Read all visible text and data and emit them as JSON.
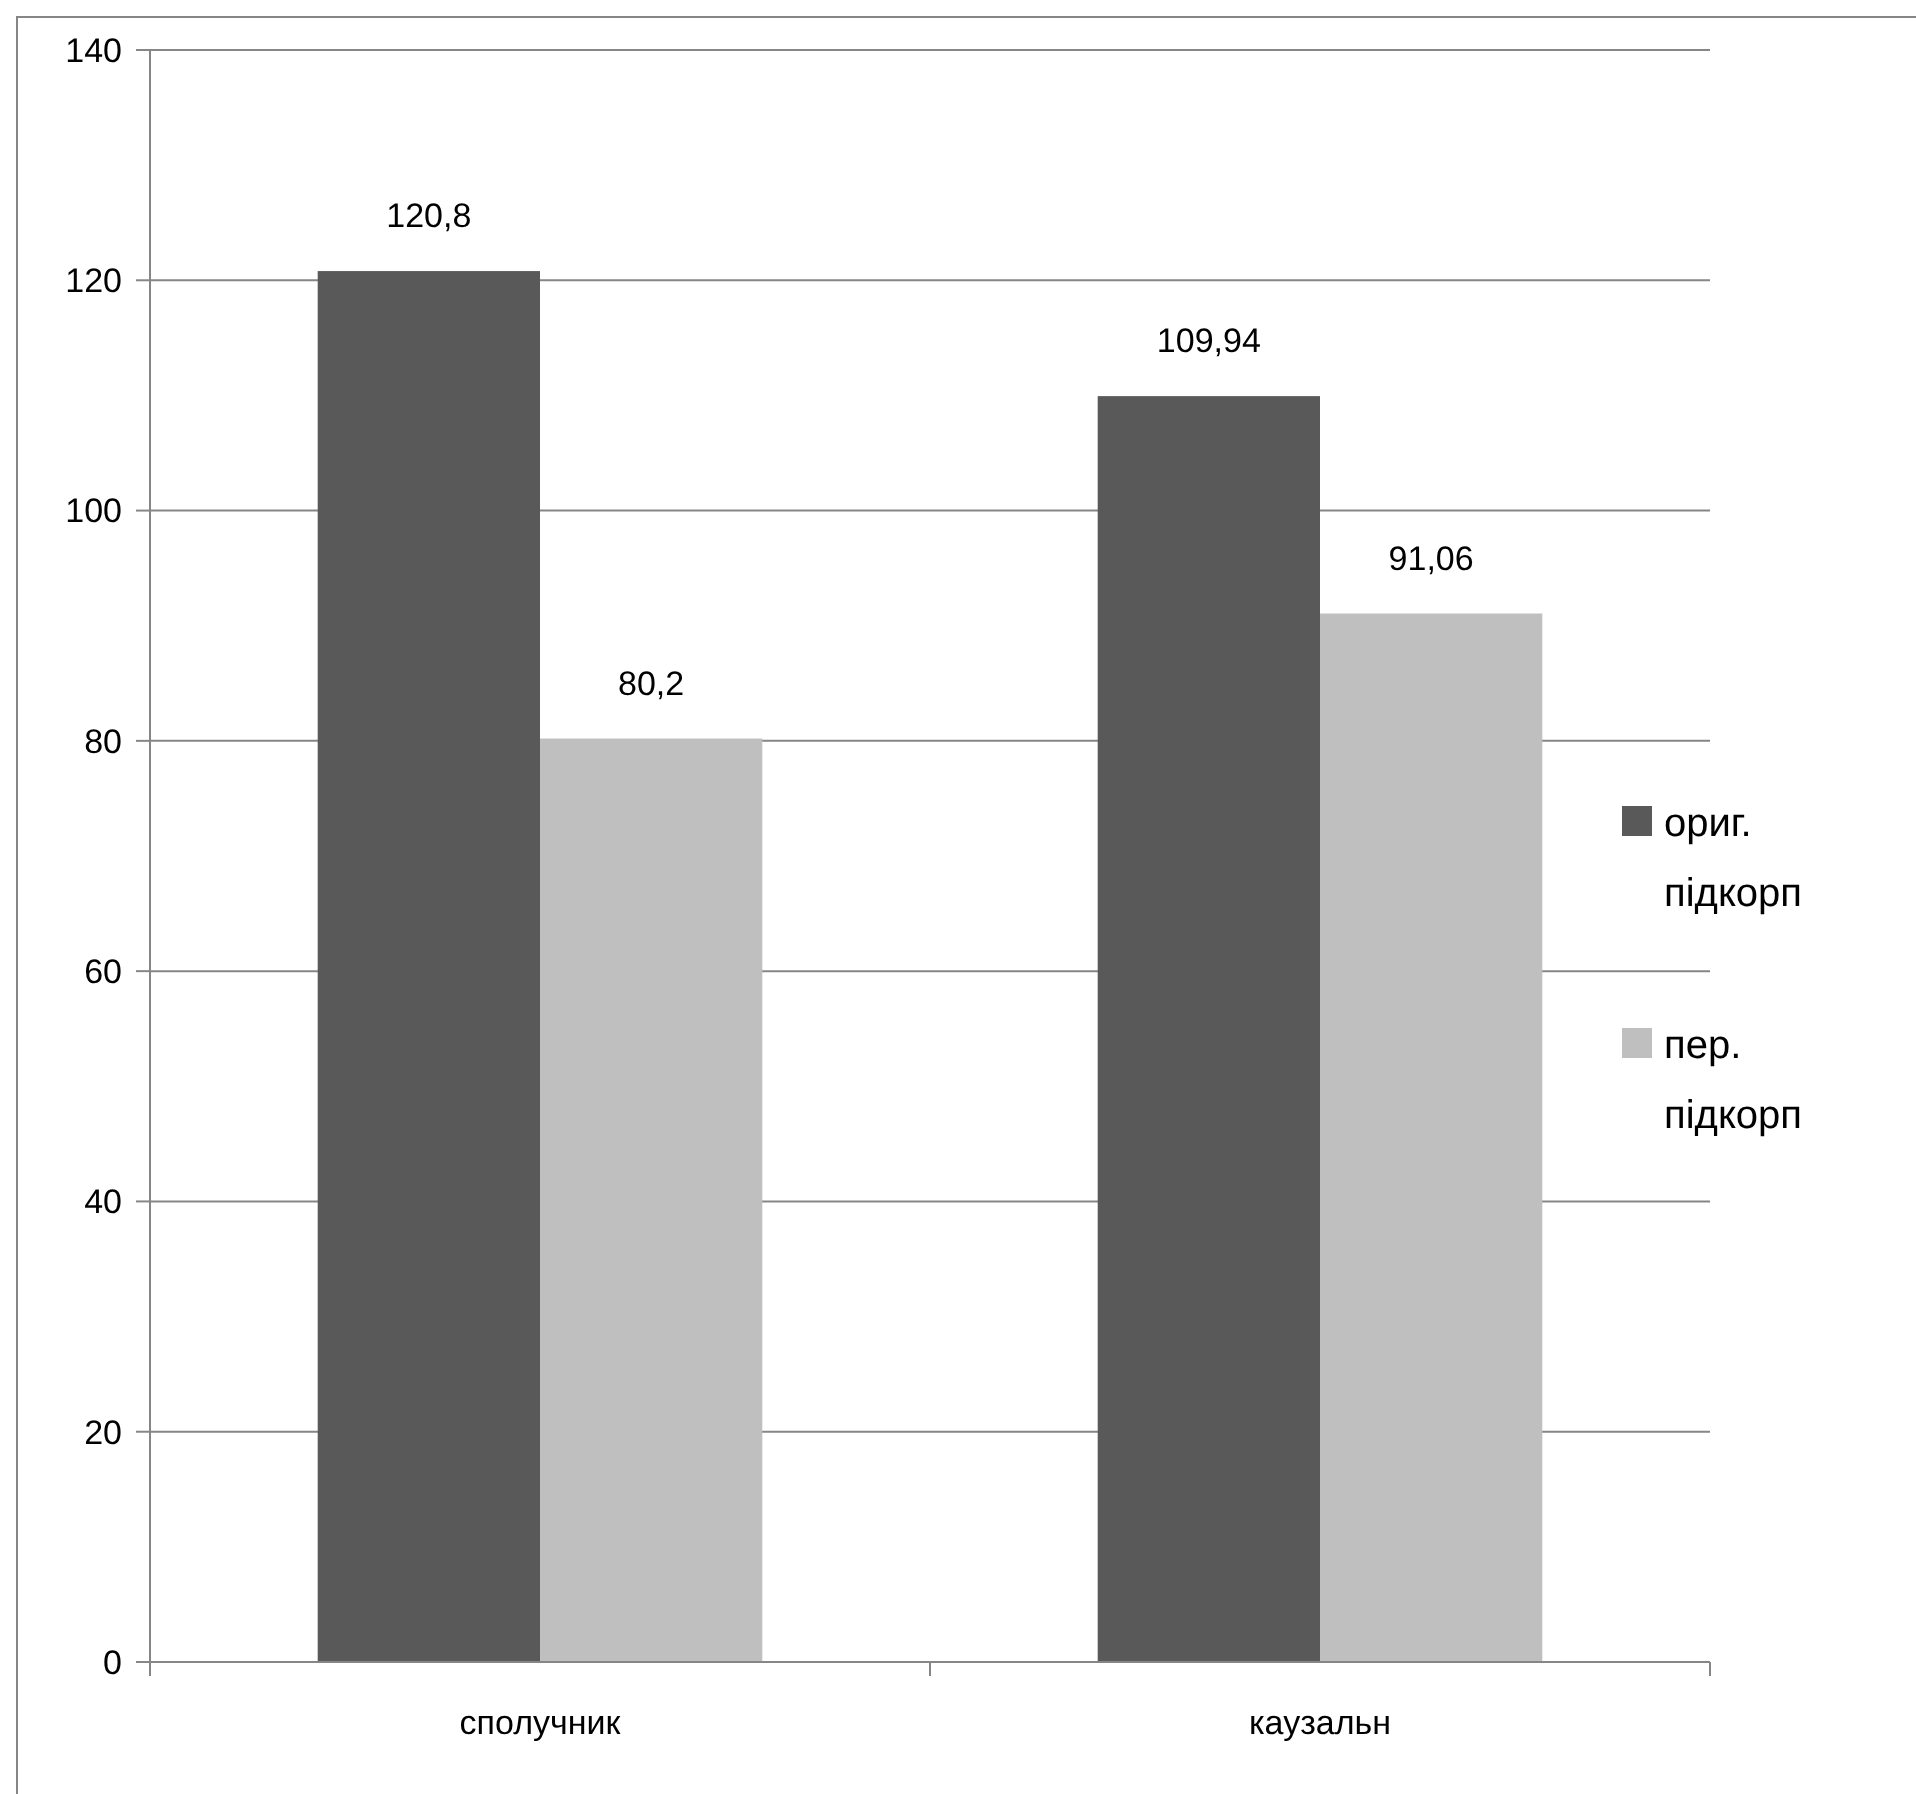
{
  "chart_data": {
    "type": "bar",
    "categories": [
      "сполучник",
      "каузальн"
    ],
    "series": [
      {
        "name": "ориг. підкорп",
        "color": "#595959",
        "values": [
          120.8,
          109.94
        ],
        "value_labels": [
          "120,8",
          "109,94"
        ]
      },
      {
        "name": "пер. підкорп",
        "color": "#bfbfbf",
        "values": [
          80.2,
          91.06
        ],
        "value_labels": [
          "80,2",
          "91,06"
        ]
      }
    ],
    "ylim": [
      0,
      140
    ],
    "yticks": [
      0,
      20,
      40,
      60,
      80,
      100,
      120,
      140
    ],
    "grid": "y",
    "legend": "right"
  }
}
